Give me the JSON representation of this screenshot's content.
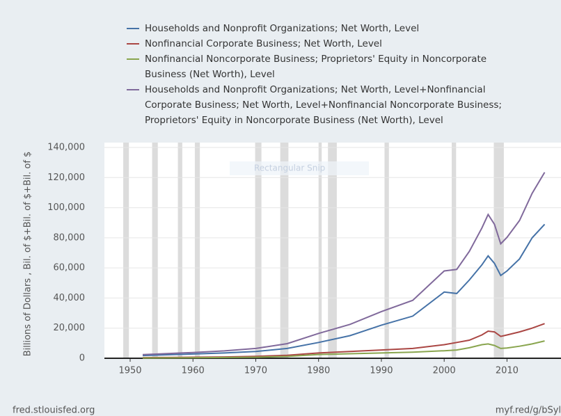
{
  "chart_data": {
    "type": "line",
    "y_label": "Billions of Dollars , Bil. of $+Bil. of $+Bil. of $",
    "annotation": "Rectangular Snip",
    "source": "fred.stlouisfed.org",
    "link": "myf.red/g/bSyl",
    "x": [
      1952,
      1955,
      1960,
      1965,
      1970,
      1975,
      1980,
      1985,
      1990,
      1995,
      2000,
      2002,
      2004,
      2006,
      2007,
      2008,
      2009,
      2010,
      2012,
      2014,
      2016
    ],
    "series": [
      {
        "name": "Households and Nonprofit Organizations; Net Worth, Level",
        "color": "#4572a7",
        "values": [
          1800,
          2200,
          2800,
          3500,
          4500,
          6500,
          10500,
          15000,
          22000,
          28000,
          44000,
          43000,
          52000,
          62000,
          68000,
          63000,
          55000,
          58000,
          66000,
          80000,
          89000
        ]
      },
      {
        "name": "Nonfinancial Corporate Business; Net Worth, Level",
        "color": "#aa4643",
        "values": [
          400,
          500,
          700,
          900,
          1300,
          2000,
          3500,
          4500,
          5500,
          6500,
          9000,
          10500,
          12000,
          15500,
          18000,
          17500,
          14500,
          15500,
          17500,
          20000,
          23000
        ]
      },
      {
        "name": "Nonfinancial Noncorporate Business; Proprietors' Equity in Noncorporate Business (Net Worth), Level",
        "color": "#89a54e",
        "values": [
          200,
          250,
          350,
          500,
          700,
          1200,
          2500,
          3000,
          3500,
          4000,
          5000,
          5500,
          7000,
          9000,
          9500,
          8500,
          6500,
          6800,
          8000,
          9500,
          11500
        ]
      },
      {
        "name": "Households and Nonprofit Organizations; Net Worth, Level+Nonfinancial Corporate Business; Net Worth, Level+Nonfinancial Noncorporate Business; Proprietors' Equity in Noncorporate Business (Net Worth), Level",
        "color": "#80699b",
        "values": [
          2400,
          2950,
          3850,
          4900,
          6500,
          9700,
          16500,
          22500,
          31000,
          38500,
          58000,
          59000,
          71000,
          86500,
          95500,
          89000,
          76000,
          80300,
          91500,
          109500,
          123500
        ]
      }
    ],
    "recessions": [
      [
        1948.9,
        1949.8
      ],
      [
        1953.5,
        1954.4
      ],
      [
        1957.6,
        1958.3
      ],
      [
        1960.3,
        1961.1
      ],
      [
        1969.9,
        1970.9
      ],
      [
        1973.9,
        1975.2
      ],
      [
        1980.0,
        1980.5
      ],
      [
        1981.5,
        1982.9
      ],
      [
        1990.5,
        1991.2
      ],
      [
        2001.2,
        2001.9
      ],
      [
        2007.9,
        2009.5
      ]
    ],
    "recession_color": "#dcdcdc",
    "xlim": [
      1945.9,
      2018.6
    ],
    "xticks": [
      1950,
      1960,
      1970,
      1980,
      1990,
      2000,
      2010
    ],
    "ylim": [
      0,
      140000
    ],
    "yticks": [
      {
        "value": 0,
        "label": "0"
      },
      {
        "value": 20000,
        "label": "20,000"
      },
      {
        "value": 40000,
        "label": "40,000"
      },
      {
        "value": 60000,
        "label": "60,000"
      },
      {
        "value": 80000,
        "label": "80,000"
      },
      {
        "value": 100000,
        "label": "100,000"
      },
      {
        "value": 120000,
        "label": "120,000"
      },
      {
        "value": 140000,
        "label": "140,000"
      }
    ],
    "grid": true
  }
}
